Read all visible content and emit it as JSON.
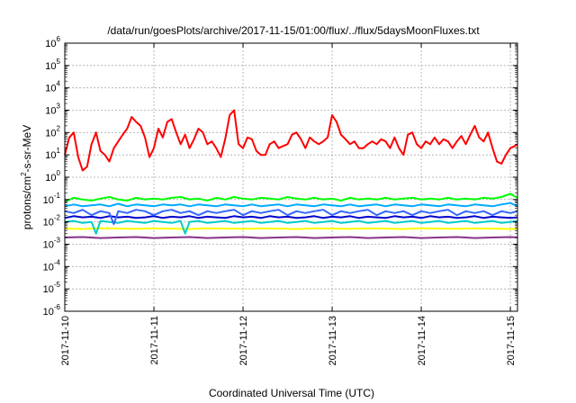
{
  "chart_data": {
    "type": "line",
    "title": "/data/run/goesPlots/archive/2017-11-15/01:00/flux/../flux/5daysMoonFluxes.txt",
    "xlabel": "Coordinated Universal Time (UTC)",
    "ylabel": {
      "main": "protons/cm",
      "sup": "2",
      "rest": "-s-sr-MeV"
    },
    "y_scale": "log",
    "ylim_exp": [
      -6,
      6
    ],
    "xlim_days": [
      0,
      5.08
    ],
    "grid": true,
    "x_ticks": [
      "2017-11-10",
      "2017-11-11",
      "2017-11-12",
      "2017-11-13",
      "2017-11-14",
      "2017-11-15"
    ],
    "y_ticks": [
      {
        "base": "10",
        "exp": "-6"
      },
      {
        "base": "10",
        "exp": "-5"
      },
      {
        "base": "10",
        "exp": "-4"
      },
      {
        "base": "10",
        "exp": "-3"
      },
      {
        "base": "10",
        "exp": "-2"
      },
      {
        "base": "10",
        "exp": "-1"
      },
      {
        "base": "10",
        "exp": "0"
      },
      {
        "base": "10",
        "exp": "1"
      },
      {
        "base": "10",
        "exp": "2"
      },
      {
        "base": "10",
        "exp": "3"
      },
      {
        "base": "10",
        "exp": "4"
      },
      {
        "base": "10",
        "exp": "5"
      },
      {
        "base": "10",
        "exp": "6"
      }
    ],
    "series": [
      {
        "color": "#ff0000",
        "width": 2,
        "x": [
          0,
          0.05,
          0.1,
          0.15,
          0.2,
          0.25,
          0.3,
          0.35,
          0.4,
          0.45,
          0.5,
          0.55,
          0.6,
          0.65,
          0.7,
          0.75,
          0.8,
          0.85,
          0.9,
          0.95,
          1.0,
          1.05,
          1.1,
          1.15,
          1.2,
          1.25,
          1.3,
          1.35,
          1.4,
          1.45,
          1.5,
          1.55,
          1.6,
          1.65,
          1.7,
          1.75,
          1.8,
          1.85,
          1.9,
          1.95,
          2.0,
          2.05,
          2.1,
          2.15,
          2.2,
          2.25,
          2.3,
          2.35,
          2.4,
          2.45,
          2.5,
          2.55,
          2.6,
          2.65,
          2.7,
          2.75,
          2.8,
          2.85,
          2.9,
          2.95,
          3.0,
          3.05,
          3.1,
          3.15,
          3.2,
          3.25,
          3.3,
          3.35,
          3.4,
          3.45,
          3.5,
          3.55,
          3.6,
          3.65,
          3.7,
          3.75,
          3.8,
          3.85,
          3.9,
          3.95,
          4.0,
          4.05,
          4.1,
          4.15,
          4.2,
          4.25,
          4.3,
          4.35,
          4.4,
          4.45,
          4.5,
          4.55,
          4.6,
          4.65,
          4.7,
          4.75,
          4.8,
          4.85,
          4.9,
          4.95,
          5.0,
          5.05,
          5.08
        ],
        "y": [
          10,
          60,
          100,
          8,
          2,
          3,
          30,
          100,
          15,
          10,
          5,
          20,
          40,
          80,
          150,
          500,
          300,
          200,
          60,
          8,
          20,
          150,
          60,
          300,
          400,
          100,
          30,
          80,
          20,
          50,
          150,
          100,
          30,
          40,
          20,
          8,
          50,
          600,
          1000,
          30,
          20,
          60,
          50,
          15,
          10,
          10,
          30,
          40,
          20,
          25,
          30,
          80,
          100,
          50,
          20,
          60,
          40,
          30,
          40,
          60,
          600,
          300,
          80,
          50,
          30,
          40,
          20,
          20,
          30,
          40,
          30,
          50,
          40,
          20,
          60,
          20,
          10,
          80,
          100,
          30,
          20,
          40,
          30,
          60,
          30,
          50,
          40,
          20,
          40,
          70,
          30,
          80,
          200,
          60,
          40,
          100,
          20,
          5,
          4,
          10,
          20,
          25,
          30
        ]
      },
      {
        "color": "#00ff00",
        "width": 2,
        "x": [
          0,
          0.1,
          0.2,
          0.3,
          0.4,
          0.5,
          0.6,
          0.7,
          0.8,
          0.9,
          1.0,
          1.1,
          1.2,
          1.3,
          1.4,
          1.5,
          1.6,
          1.7,
          1.8,
          1.9,
          2.0,
          2.1,
          2.2,
          2.3,
          2.4,
          2.5,
          2.6,
          2.7,
          2.8,
          2.9,
          3.0,
          3.1,
          3.2,
          3.3,
          3.4,
          3.5,
          3.6,
          3.7,
          3.8,
          3.9,
          4.0,
          4.1,
          4.2,
          4.3,
          4.4,
          4.5,
          4.6,
          4.7,
          4.8,
          4.9,
          5.0,
          5.08
        ],
        "y": [
          0.08,
          0.12,
          0.1,
          0.09,
          0.11,
          0.13,
          0.1,
          0.09,
          0.12,
          0.1,
          0.11,
          0.1,
          0.12,
          0.13,
          0.1,
          0.11,
          0.09,
          0.12,
          0.1,
          0.13,
          0.11,
          0.1,
          0.12,
          0.11,
          0.1,
          0.13,
          0.11,
          0.1,
          0.12,
          0.1,
          0.11,
          0.09,
          0.12,
          0.1,
          0.11,
          0.1,
          0.12,
          0.1,
          0.11,
          0.12,
          0.1,
          0.11,
          0.1,
          0.12,
          0.1,
          0.11,
          0.1,
          0.12,
          0.11,
          0.13,
          0.18,
          0.12
        ]
      },
      {
        "color": "#00aaff",
        "width": 2,
        "x": [
          0,
          0.1,
          0.2,
          0.3,
          0.4,
          0.5,
          0.6,
          0.7,
          0.8,
          0.9,
          1.0,
          1.1,
          1.2,
          1.3,
          1.4,
          1.5,
          1.6,
          1.7,
          1.8,
          1.9,
          2.0,
          2.1,
          2.2,
          2.3,
          2.4,
          2.5,
          2.6,
          2.7,
          2.8,
          2.9,
          3.0,
          3.1,
          3.2,
          3.3,
          3.4,
          3.5,
          3.6,
          3.7,
          3.8,
          3.9,
          4.0,
          4.1,
          4.2,
          4.3,
          4.4,
          4.5,
          4.6,
          4.7,
          4.8,
          4.9,
          5.0,
          5.08
        ],
        "y": [
          0.05,
          0.06,
          0.05,
          0.055,
          0.06,
          0.05,
          0.065,
          0.05,
          0.06,
          0.055,
          0.05,
          0.06,
          0.055,
          0.06,
          0.05,
          0.06,
          0.055,
          0.05,
          0.06,
          0.055,
          0.05,
          0.06,
          0.05,
          0.055,
          0.06,
          0.05,
          0.06,
          0.055,
          0.05,
          0.06,
          0.055,
          0.05,
          0.06,
          0.05,
          0.055,
          0.06,
          0.05,
          0.06,
          0.055,
          0.05,
          0.06,
          0.055,
          0.05,
          0.06,
          0.055,
          0.05,
          0.06,
          0.055,
          0.05,
          0.06,
          0.07,
          0.05
        ]
      },
      {
        "color": "#3366ff",
        "width": 2,
        "x": [
          0,
          0.1,
          0.2,
          0.3,
          0.4,
          0.5,
          0.55,
          0.6,
          0.7,
          0.8,
          0.9,
          1.0,
          1.1,
          1.2,
          1.3,
          1.4,
          1.5,
          1.6,
          1.7,
          1.8,
          1.9,
          2.0,
          2.1,
          2.2,
          2.3,
          2.4,
          2.5,
          2.6,
          2.7,
          2.8,
          2.9,
          3.0,
          3.1,
          3.2,
          3.3,
          3.4,
          3.5,
          3.6,
          3.7,
          3.8,
          3.9,
          4.0,
          4.1,
          4.2,
          4.3,
          4.4,
          4.5,
          4.6,
          4.7,
          4.8,
          4.9,
          5.0,
          5.08
        ],
        "y": [
          0.03,
          0.025,
          0.035,
          0.02,
          0.03,
          0.025,
          0.008,
          0.03,
          0.025,
          0.035,
          0.03,
          0.02,
          0.03,
          0.035,
          0.025,
          0.03,
          0.02,
          0.03,
          0.025,
          0.03,
          0.035,
          0.02,
          0.03,
          0.025,
          0.03,
          0.035,
          0.02,
          0.03,
          0.025,
          0.03,
          0.035,
          0.02,
          0.03,
          0.025,
          0.03,
          0.035,
          0.02,
          0.03,
          0.025,
          0.03,
          0.02,
          0.03,
          0.025,
          0.03,
          0.035,
          0.02,
          0.03,
          0.025,
          0.03,
          0.02,
          0.03,
          0.025,
          0.03
        ]
      },
      {
        "color": "#0000cc",
        "width": 2,
        "x": [
          0,
          0.1,
          0.2,
          0.3,
          0.4,
          0.5,
          0.6,
          0.7,
          0.8,
          0.9,
          1.0,
          1.1,
          1.2,
          1.3,
          1.4,
          1.5,
          1.6,
          1.7,
          1.8,
          1.9,
          2.0,
          2.1,
          2.2,
          2.3,
          2.4,
          2.5,
          2.6,
          2.7,
          2.8,
          2.9,
          3.0,
          3.1,
          3.2,
          3.3,
          3.4,
          3.5,
          3.6,
          3.7,
          3.8,
          3.9,
          4.0,
          4.1,
          4.2,
          4.3,
          4.4,
          4.5,
          4.6,
          4.7,
          4.8,
          4.9,
          5.0,
          5.08
        ],
        "y": [
          0.015,
          0.018,
          0.016,
          0.017,
          0.015,
          0.018,
          0.016,
          0.017,
          0.015,
          0.016,
          0.018,
          0.015,
          0.017,
          0.016,
          0.018,
          0.015,
          0.017,
          0.016,
          0.015,
          0.018,
          0.016,
          0.017,
          0.015,
          0.018,
          0.016,
          0.017,
          0.015,
          0.016,
          0.018,
          0.015,
          0.017,
          0.016,
          0.018,
          0.015,
          0.017,
          0.016,
          0.015,
          0.018,
          0.016,
          0.017,
          0.015,
          0.018,
          0.016,
          0.017,
          0.015,
          0.016,
          0.018,
          0.015,
          0.017,
          0.016,
          0.015,
          0.016
        ]
      },
      {
        "color": "#00cccc",
        "width": 2,
        "x": [
          0,
          0.1,
          0.2,
          0.3,
          0.35,
          0.4,
          0.5,
          0.6,
          0.7,
          0.8,
          0.9,
          1.0,
          1.1,
          1.2,
          1.3,
          1.35,
          1.4,
          1.5,
          1.6,
          1.7,
          1.8,
          1.9,
          2.0,
          2.1,
          2.2,
          2.3,
          2.4,
          2.5,
          2.6,
          2.7,
          2.8,
          2.9,
          3.0,
          3.1,
          3.2,
          3.3,
          3.4,
          3.5,
          3.6,
          3.7,
          3.8,
          3.9,
          4.0,
          4.1,
          4.2,
          4.3,
          4.4,
          4.5,
          4.6,
          4.7,
          4.8,
          4.9,
          5.0,
          5.08
        ],
        "y": [
          0.01,
          0.011,
          0.009,
          0.01,
          0.003,
          0.011,
          0.01,
          0.009,
          0.011,
          0.01,
          0.009,
          0.011,
          0.01,
          0.009,
          0.011,
          0.003,
          0.01,
          0.011,
          0.009,
          0.01,
          0.011,
          0.009,
          0.01,
          0.011,
          0.009,
          0.01,
          0.011,
          0.009,
          0.01,
          0.011,
          0.009,
          0.01,
          0.011,
          0.009,
          0.01,
          0.011,
          0.009,
          0.01,
          0.011,
          0.009,
          0.01,
          0.011,
          0.009,
          0.01,
          0.011,
          0.009,
          0.01,
          0.011,
          0.009,
          0.01,
          0.011,
          0.009,
          0.01,
          0.011
        ]
      },
      {
        "color": "#ffff00",
        "width": 2,
        "x": [
          0,
          0.2,
          0.4,
          0.6,
          0.8,
          1.0,
          1.2,
          1.4,
          1.6,
          1.8,
          2.0,
          2.2,
          2.4,
          2.6,
          2.8,
          3.0,
          3.2,
          3.4,
          3.6,
          3.8,
          4.0,
          4.2,
          4.4,
          4.6,
          4.8,
          5.0,
          5.08
        ],
        "y": [
          0.005,
          0.0048,
          0.0052,
          0.005,
          0.0049,
          0.0051,
          0.005,
          0.0048,
          0.0052,
          0.005,
          0.0049,
          0.0051,
          0.005,
          0.0048,
          0.0052,
          0.005,
          0.0049,
          0.0051,
          0.005,
          0.0048,
          0.0052,
          0.005,
          0.0049,
          0.0051,
          0.005,
          0.0048,
          0.005
        ]
      },
      {
        "color": "#883388",
        "width": 2,
        "x": [
          0,
          0.2,
          0.4,
          0.6,
          0.8,
          1.0,
          1.2,
          1.4,
          1.6,
          1.8,
          2.0,
          2.2,
          2.4,
          2.6,
          2.8,
          3.0,
          3.2,
          3.4,
          3.6,
          3.8,
          4.0,
          4.2,
          4.4,
          4.6,
          4.8,
          5.0,
          5.08
        ],
        "y": [
          0.002,
          0.0021,
          0.0019,
          0.002,
          0.0021,
          0.0019,
          0.002,
          0.0021,
          0.0019,
          0.002,
          0.0021,
          0.0019,
          0.002,
          0.0021,
          0.0019,
          0.002,
          0.0021,
          0.0019,
          0.002,
          0.0021,
          0.0019,
          0.002,
          0.0021,
          0.0019,
          0.002,
          0.0021,
          0.002
        ]
      }
    ]
  }
}
